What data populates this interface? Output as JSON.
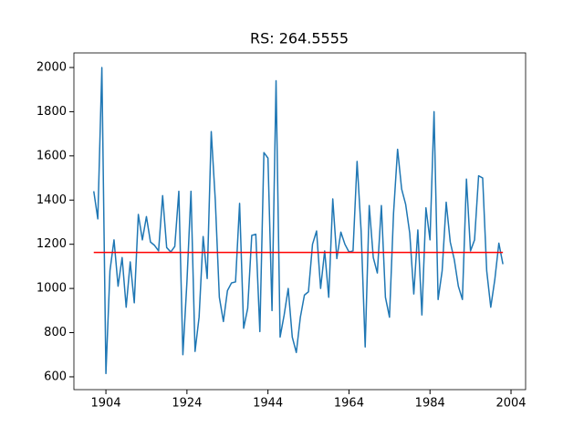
{
  "chart_data": {
    "type": "line",
    "title": "RS: 264.5555",
    "x": [
      1901,
      1902,
      1903,
      1904,
      1905,
      1906,
      1907,
      1908,
      1909,
      1910,
      1911,
      1912,
      1913,
      1914,
      1915,
      1916,
      1917,
      1918,
      1919,
      1920,
      1921,
      1922,
      1923,
      1924,
      1925,
      1926,
      1927,
      1928,
      1929,
      1930,
      1931,
      1932,
      1933,
      1934,
      1935,
      1936,
      1937,
      1938,
      1939,
      1940,
      1941,
      1942,
      1943,
      1944,
      1945,
      1946,
      1947,
      1948,
      1949,
      1950,
      1951,
      1952,
      1953,
      1954,
      1955,
      1956,
      1957,
      1958,
      1959,
      1960,
      1961,
      1962,
      1963,
      1964,
      1965,
      1966,
      1967,
      1968,
      1969,
      1970,
      1971,
      1972,
      1973,
      1974,
      1975,
      1976,
      1977,
      1978,
      1979,
      1980,
      1981,
      1982,
      1983,
      1984,
      1985,
      1986,
      1987,
      1988,
      1989,
      1990,
      1991,
      1992,
      1993,
      1994,
      1995,
      1996,
      1997,
      1998,
      1999,
      2000,
      2001,
      2002
    ],
    "series": [
      {
        "color": "#1f77b4",
        "values": [
          1440,
          1315,
          2000,
          615,
          1080,
          1220,
          1010,
          1140,
          915,
          1120,
          935,
          1335,
          1220,
          1325,
          1210,
          1195,
          1170,
          1420,
          1185,
          1165,
          1190,
          1440,
          700,
          1030,
          1440,
          715,
          870,
          1235,
          1045,
          1710,
          1400,
          960,
          850,
          990,
          1025,
          1030,
          1385,
          820,
          910,
          1240,
          1245,
          805,
          1615,
          1590,
          900,
          1940,
          780,
          880,
          1000,
          780,
          710,
          870,
          970,
          985,
          1200,
          1260,
          1000,
          1170,
          960,
          1405,
          1135,
          1255,
          1200,
          1165,
          1170,
          1575,
          1260,
          735,
          1375,
          1140,
          1070,
          1375,
          960,
          870,
          1340,
          1630,
          1450,
          1380,
          1250,
          975,
          1265,
          880,
          1365,
          1220,
          1800,
          950,
          1080,
          1390,
          1210,
          1130,
          1010,
          950,
          1495,
          1170,
          1220,
          1510,
          1500,
          1080,
          915,
          1040,
          1205,
          1110
        ]
      }
    ],
    "mean_line": {
      "value": 1163,
      "color": "#ff0000"
    },
    "xlim": [
      1896.1,
      2007.6
    ],
    "xticks": [
      1904,
      1924,
      1944,
      1964,
      1984,
      2004
    ],
    "ylim": [
      542,
      2066
    ],
    "yticks": [
      600,
      800,
      1000,
      1200,
      1400,
      1600,
      1800,
      2000
    ]
  }
}
